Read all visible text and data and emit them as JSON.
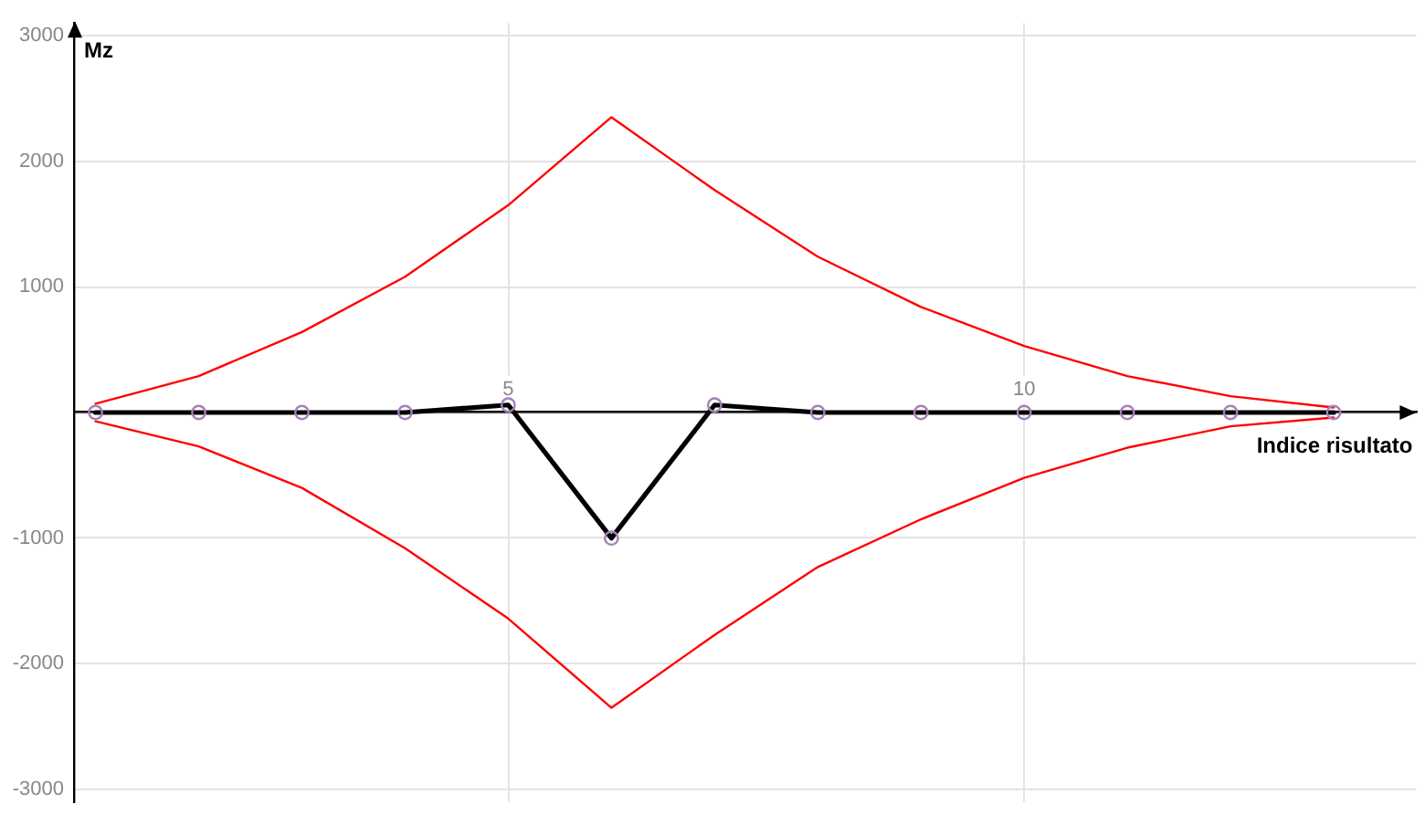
{
  "chart_data": {
    "type": "line",
    "xlabel": "Indice risultato",
    "ylabel": "Mz",
    "x": [
      1,
      2,
      3,
      4,
      5,
      6,
      7,
      8,
      9,
      10,
      11,
      12,
      13
    ],
    "series": [
      {
        "color": "#000000",
        "marker": "circle",
        "values": [
          0,
          0,
          0,
          0,
          60,
          -1000,
          60,
          0,
          0,
          0,
          0,
          0,
          0
        ]
      },
      {
        "color": "#ff0000",
        "values": [
          70,
          290,
          640,
          1080,
          1650,
          2350,
          1770,
          1240,
          840,
          530,
          290,
          130,
          40
        ]
      },
      {
        "color": "#ff0000",
        "values": [
          -70,
          -270,
          -600,
          -1080,
          -1640,
          -2350,
          -1770,
          -1230,
          -850,
          -520,
          -280,
          -110,
          -40
        ]
      }
    ],
    "xlim": [
      0.8,
      13.8
    ],
    "ylim": [
      -3100,
      3100
    ],
    "xticks": [
      5,
      10
    ],
    "yticks": [
      -3000,
      -2000,
      -1000,
      {
        "value": 0,
        "label": null
      },
      1000,
      2000,
      3000
    ],
    "grid": true
  }
}
